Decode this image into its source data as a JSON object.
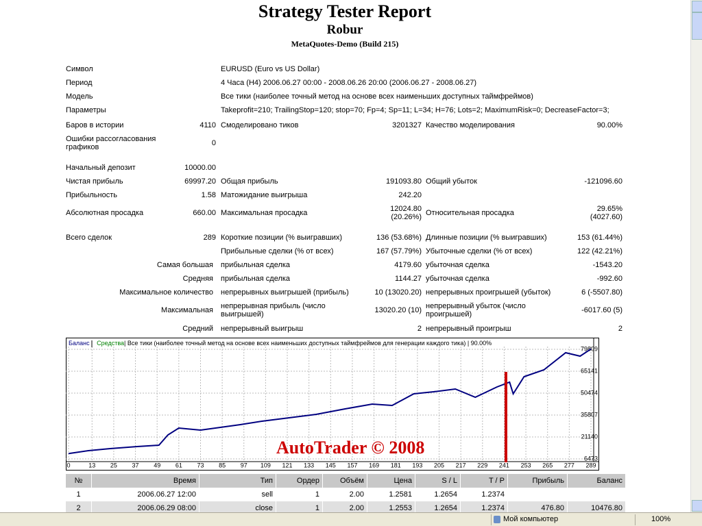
{
  "header": {
    "title": "Strategy Tester Report",
    "expert": "Robur",
    "server": "MetaQuotes-Demo (Build 215)"
  },
  "stats": {
    "rows": [
      [
        "Символ",
        "EURUSD (Euro vs US Dollar)"
      ],
      [
        "Период",
        "4 Часа (H4) 2006.06.27 00:00 - 2008.06.26 20:00 (2006.06.27 - 2008.06.27)"
      ],
      [
        "Модель",
        "Все тики (наиболее точный метод на основе всех наименьших доступных таймфреймов)"
      ],
      [
        "Параметры",
        "Takeprofit=210; TrailingStop=120; stop=70; Fp=4; Sp=11; L=34; H=76; Lots=2; MaximumRisk=0; DecreaseFactor=3;"
      ],
      [
        "Баров в истории",
        "4110",
        "Смоделировано тиков",
        "3201327",
        "Качество моделирования",
        "90.00%"
      ],
      [
        "Ошибки рассогласования графиков",
        "0",
        null,
        null,
        null,
        null
      ],
      [
        "Начальный депозит",
        "10000.00",
        null,
        null,
        null,
        null
      ],
      [
        "Чистая прибыль",
        "69997.20",
        "Общая прибыль",
        "191093.80",
        "Общий убыток",
        "-121096.60"
      ],
      [
        "Прибыльность",
        "1.58",
        "Матожидание выигрыша",
        "242.20",
        null,
        null
      ],
      [
        "Абсолютная просадка",
        "660.00",
        "Максимальная просадка",
        "12024.80 (20.26%)",
        "Относительная просадка",
        "29.65% (4027.60)"
      ],
      [
        "Всего сделок",
        "289",
        "Короткие позиции (% выигравших)",
        "136 (53.68%)",
        "Длинные позиции (% выигравших)",
        "153 (61.44%)"
      ],
      [
        null,
        null,
        "Прибыльные сделки (% от всех)",
        "167 (57.79%)",
        "Убыточные сделки (% от всех)",
        "122 (42.21%)"
      ],
      [
        "Самая большая",
        null,
        "прибыльная сделка",
        "4179.60",
        "убыточная сделка",
        "-1543.20"
      ],
      [
        "Средняя",
        null,
        "прибыльная сделка",
        "1144.27",
        "убыточная сделка",
        "-992.60"
      ],
      [
        "Максимальное количество",
        null,
        "непрерывных выигрышей (прибыль)",
        "10 (13020.20)",
        "непрерывных проигрышей (убыток)",
        "6 (-5507.80)"
      ],
      [
        "Максимальная",
        null,
        "непрерывная прибыль (число выигрышей)",
        "13020.20 (10)",
        "непрерывный убыток (число проигрышей)",
        "-6017.60 (5)"
      ],
      [
        "Средний",
        null,
        "непрерывный выигрыш",
        "2",
        "непрерывный проигрыш",
        "2"
      ]
    ]
  },
  "chart_data": {
    "type": "line",
    "series": [
      {
        "name": "Баланс",
        "color": "#000080",
        "values": [
          10000,
          11970,
          13350,
          14720,
          15640,
          22520,
          27100,
          25720,
          27560,
          29390,
          31680,
          33970,
          36270,
          39930,
          43140,
          42220,
          50020,
          51390,
          53230,
          47720,
          54600,
          57810,
          50020,
          61470,
          66060,
          77520,
          75230,
          79997
        ]
      }
    ],
    "x": [
      0,
      11,
      23,
      38,
      50,
      55,
      61,
      73,
      84,
      95,
      107,
      122,
      137,
      153,
      168,
      179,
      191,
      202,
      214,
      225,
      237,
      244,
      246,
      252,
      263,
      275,
      283,
      289
    ],
    "equity_label": "Средства",
    "equity_color": "#008000",
    "description": "| Все тики (наиболее точный метод на основе всех наименьших доступных таймфреймов для генерации каждого тика) | 90.00%",
    "watermark": "AutoTrader © 2008",
    "watermark_color": "#cc0000",
    "xlim": [
      0,
      289
    ],
    "xticks": [
      0,
      13,
      25,
      37,
      49,
      61,
      73,
      85,
      97,
      109,
      121,
      133,
      145,
      157,
      169,
      181,
      193,
      205,
      217,
      229,
      241,
      253,
      265,
      277,
      289
    ],
    "ylim": [
      6473,
      79809
    ],
    "yticks": [
      6473,
      21140,
      35807,
      50474,
      65141,
      79809
    ],
    "grid": true
  },
  "trades": {
    "header": [
      "№",
      "Время",
      "Тип",
      "Ордер",
      "Объём",
      "Цена",
      "S / L",
      "T / P",
      "Прибыль",
      "Баланс"
    ],
    "rows": [
      [
        "1",
        "2006.06.27 12:00",
        "sell",
        "1",
        "2.00",
        "1.2581",
        "1.2654",
        "1.2374",
        null,
        null
      ],
      [
        "2",
        "2006.06.29 08:00",
        "close",
        "1",
        "2.00",
        "1.2553",
        "1.2654",
        "1.2374",
        "476.80",
        "10476.80"
      ]
    ]
  },
  "status": {
    "zone": "Мой компьютер",
    "zoom": "100%"
  }
}
